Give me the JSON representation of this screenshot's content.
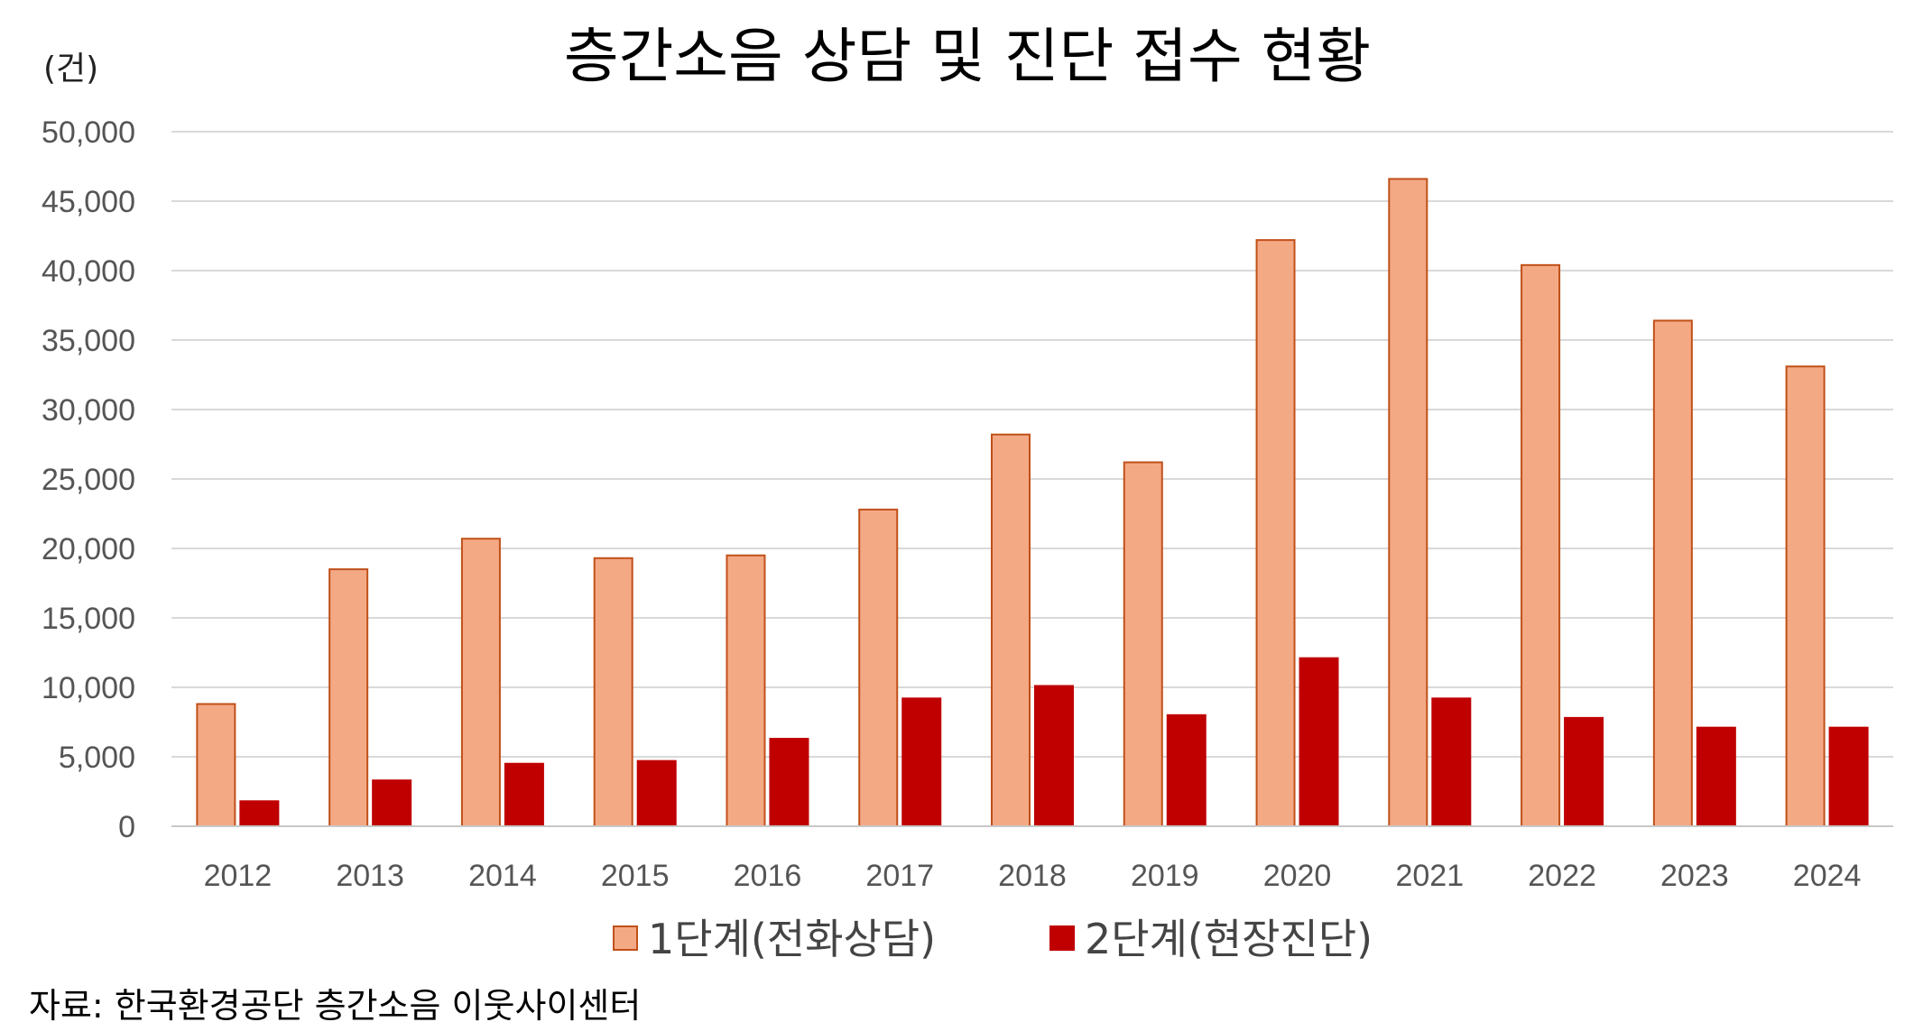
{
  "chart_data": {
    "type": "bar",
    "title": "층간소음 상담 및 진단 접수 현황",
    "unit_label": "(건)",
    "source": "자료: 한국환경공단 층간소음 이웃사이센터",
    "categories": [
      "2012",
      "2013",
      "2014",
      "2015",
      "2016",
      "2017",
      "2018",
      "2019",
      "2020",
      "2021",
      "2022",
      "2023",
      "2024"
    ],
    "series": [
      {
        "name": "1단계(전화상담)",
        "color": "#F4A985",
        "stroke": "#C0501A",
        "values": [
          8800,
          18500,
          20700,
          19300,
          19500,
          22800,
          28200,
          26200,
          42200,
          46600,
          40400,
          36400,
          33100
        ]
      },
      {
        "name": "2단계(현장진단)",
        "color": "#C00000",
        "stroke": "#C00000",
        "values": [
          1800,
          3300,
          4500,
          4700,
          6300,
          9200,
          10100,
          8000,
          12100,
          9200,
          7800,
          7100,
          7100
        ]
      }
    ],
    "ylim": [
      0,
      50000
    ],
    "yticks": [
      "0",
      "5,000",
      "10,000",
      "15,000",
      "20,000",
      "25,000",
      "30,000",
      "35,000",
      "40,000",
      "45,000",
      "50,000"
    ],
    "ytick_values": [
      0,
      5000,
      10000,
      15000,
      20000,
      25000,
      30000,
      35000,
      40000,
      45000,
      50000
    ],
    "grid": true,
    "legend_position": "bottom"
  }
}
